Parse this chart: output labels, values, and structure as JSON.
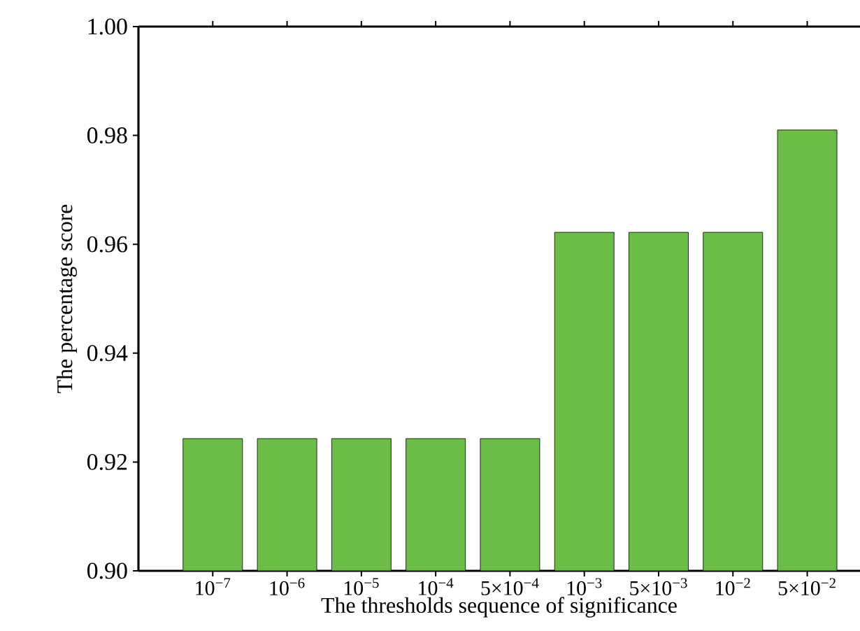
{
  "chart_data": {
    "type": "bar",
    "xlabel": "The thresholds sequence of significance",
    "ylabel": "The percentage score",
    "categories": [
      "10$^{−7}$",
      "10$^{−6}$",
      "10$^{−5}$",
      "10$^{−4}$",
      "5×10$^{−4}$",
      "10$^{−3}$",
      "5×10$^{−3}$",
      "10$^{−2}$",
      "5×10$^{−2}$"
    ],
    "values": [
      0.9243,
      0.9243,
      0.9243,
      0.9243,
      0.9243,
      0.9622,
      0.9622,
      0.9622,
      0.981
    ],
    "color": "#6cbd45",
    "ylim": [
      0.9,
      1.0
    ],
    "yticks": [
      {
        "value": 0.9,
        "label": "0.90"
      },
      {
        "value": 0.92,
        "label": "0.92"
      },
      {
        "value": 0.94,
        "label": "0.94"
      },
      {
        "value": 0.96,
        "label": "0.96"
      },
      {
        "value": 0.98,
        "label": "0.98"
      },
      {
        "value": 1.0,
        "label": "1.00"
      }
    ]
  }
}
